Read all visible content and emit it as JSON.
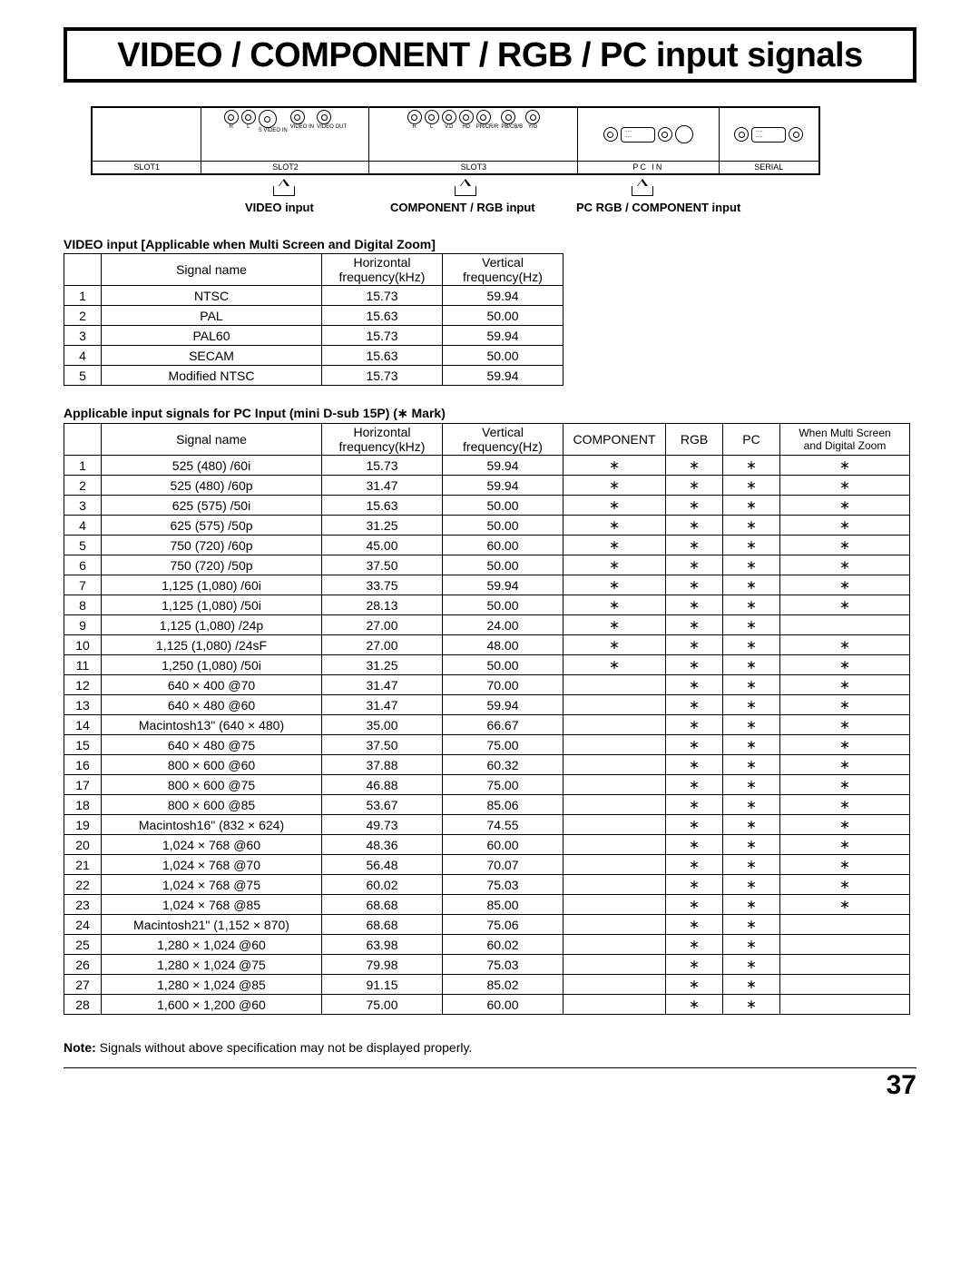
{
  "title": "VIDEO / COMPONENT / RGB / PC input signals",
  "slot_labels": {
    "slot1": "SLOT1",
    "slot2": "SLOT2",
    "slot3": "SLOT3",
    "pcin": "PC    IN",
    "serial": "SERIAL"
  },
  "port_labels": {
    "audio_r": "R",
    "audio_l": "L",
    "audio_in": "AUDIO",
    "in": "IN",
    "svideo": "S VIDEO IN",
    "av": "AV",
    "video_in": "VIDEO IN",
    "video_out": "VIDEO OUT",
    "vd": "V.D",
    "hd": "HD",
    "pr": "PR/CR/R",
    "pb": "PB/CB/B",
    "yg": "Y/G",
    "comp_rgb_in": "COMPONENT/RGB IN",
    "audio": "AUDIO"
  },
  "input_labels": {
    "video": "VIDEO input",
    "component": "COMPONENT / RGB input",
    "pc": "PC RGB / COMPONENT input"
  },
  "table1_caption": "VIDEO input [Applicable when Multi Screen and Digital Zoom]",
  "table1_headers": {
    "name": "Signal name",
    "hfreq": "Horizontal\nfrequency(kHz)",
    "vfreq": "Vertical\nfrequency(Hz)"
  },
  "table1_rows": [
    {
      "n": "1",
      "name": "NTSC",
      "h": "15.73",
      "v": "59.94"
    },
    {
      "n": "2",
      "name": "PAL",
      "h": "15.63",
      "v": "50.00"
    },
    {
      "n": "3",
      "name": "PAL60",
      "h": "15.73",
      "v": "59.94"
    },
    {
      "n": "4",
      "name": "SECAM",
      "h": "15.63",
      "v": "50.00"
    },
    {
      "n": "5",
      "name": "Modified NTSC",
      "h": "15.73",
      "v": "59.94"
    }
  ],
  "table2_caption": "Applicable input signals for PC Input (mini D-sub 15P) (∗ Mark)",
  "table2_headers": {
    "name": "Signal name",
    "hfreq": "Horizontal\nfrequency(kHz)",
    "vfreq": "Vertical\nfrequency(Hz)",
    "comp": "COMPONENT",
    "rgb": "RGB",
    "pc": "PC",
    "multi": "When Multi Screen\nand Digital Zoom"
  },
  "mark": "∗",
  "table2_rows": [
    {
      "n": "1",
      "name": "525 (480) /60i",
      "h": "15.73",
      "v": "59.94",
      "c": true,
      "r": true,
      "p": true,
      "m": true
    },
    {
      "n": "2",
      "name": "525 (480) /60p",
      "h": "31.47",
      "v": "59.94",
      "c": true,
      "r": true,
      "p": true,
      "m": true
    },
    {
      "n": "3",
      "name": "625 (575) /50i",
      "h": "15.63",
      "v": "50.00",
      "c": true,
      "r": true,
      "p": true,
      "m": true
    },
    {
      "n": "4",
      "name": "625 (575) /50p",
      "h": "31.25",
      "v": "50.00",
      "c": true,
      "r": true,
      "p": true,
      "m": true
    },
    {
      "n": "5",
      "name": "750 (720) /60p",
      "h": "45.00",
      "v": "60.00",
      "c": true,
      "r": true,
      "p": true,
      "m": true
    },
    {
      "n": "6",
      "name": "750 (720) /50p",
      "h": "37.50",
      "v": "50.00",
      "c": true,
      "r": true,
      "p": true,
      "m": true
    },
    {
      "n": "7",
      "name": "1,125 (1,080) /60i",
      "h": "33.75",
      "v": "59.94",
      "c": true,
      "r": true,
      "p": true,
      "m": true
    },
    {
      "n": "8",
      "name": "1,125 (1,080) /50i",
      "h": "28.13",
      "v": "50.00",
      "c": true,
      "r": true,
      "p": true,
      "m": true
    },
    {
      "n": "9",
      "name": "1,125 (1,080) /24p",
      "h": "27.00",
      "v": "24.00",
      "c": true,
      "r": true,
      "p": true,
      "m": false
    },
    {
      "n": "10",
      "name": "1,125 (1,080) /24sF",
      "h": "27.00",
      "v": "48.00",
      "c": true,
      "r": true,
      "p": true,
      "m": true
    },
    {
      "n": "11",
      "name": "1,250 (1,080) /50i",
      "h": "31.25",
      "v": "50.00",
      "c": true,
      "r": true,
      "p": true,
      "m": true
    },
    {
      "n": "12",
      "name": "640 × 400 @70",
      "h": "31.47",
      "v": "70.00",
      "c": false,
      "r": true,
      "p": true,
      "m": true
    },
    {
      "n": "13",
      "name": "640 × 480 @60",
      "h": "31.47",
      "v": "59.94",
      "c": false,
      "r": true,
      "p": true,
      "m": true
    },
    {
      "n": "14",
      "name": "Macintosh13\" (640 × 480)",
      "h": "35.00",
      "v": "66.67",
      "c": false,
      "r": true,
      "p": true,
      "m": true
    },
    {
      "n": "15",
      "name": "640 × 480 @75",
      "h": "37.50",
      "v": "75.00",
      "c": false,
      "r": true,
      "p": true,
      "m": true
    },
    {
      "n": "16",
      "name": "800 × 600 @60",
      "h": "37.88",
      "v": "60.32",
      "c": false,
      "r": true,
      "p": true,
      "m": true
    },
    {
      "n": "17",
      "name": "800 × 600 @75",
      "h": "46.88",
      "v": "75.00",
      "c": false,
      "r": true,
      "p": true,
      "m": true
    },
    {
      "n": "18",
      "name": "800 × 600 @85",
      "h": "53.67",
      "v": "85.06",
      "c": false,
      "r": true,
      "p": true,
      "m": true
    },
    {
      "n": "19",
      "name": "Macintosh16\" (832 × 624)",
      "h": "49.73",
      "v": "74.55",
      "c": false,
      "r": true,
      "p": true,
      "m": true
    },
    {
      "n": "20",
      "name": "1,024 × 768 @60",
      "h": "48.36",
      "v": "60.00",
      "c": false,
      "r": true,
      "p": true,
      "m": true
    },
    {
      "n": "21",
      "name": "1,024 × 768 @70",
      "h": "56.48",
      "v": "70.07",
      "c": false,
      "r": true,
      "p": true,
      "m": true
    },
    {
      "n": "22",
      "name": "1,024 × 768 @75",
      "h": "60.02",
      "v": "75.03",
      "c": false,
      "r": true,
      "p": true,
      "m": true
    },
    {
      "n": "23",
      "name": "1,024 × 768 @85",
      "h": "68.68",
      "v": "85.00",
      "c": false,
      "r": true,
      "p": true,
      "m": true
    },
    {
      "n": "24",
      "name": "Macintosh21\" (1,152 × 870)",
      "h": "68.68",
      "v": "75.06",
      "c": false,
      "r": true,
      "p": true,
      "m": false
    },
    {
      "n": "25",
      "name": "1,280 × 1,024 @60",
      "h": "63.98",
      "v": "60.02",
      "c": false,
      "r": true,
      "p": true,
      "m": false
    },
    {
      "n": "26",
      "name": "1,280 × 1,024 @75",
      "h": "79.98",
      "v": "75.03",
      "c": false,
      "r": true,
      "p": true,
      "m": false
    },
    {
      "n": "27",
      "name": "1,280 × 1,024 @85",
      "h": "91.15",
      "v": "85.02",
      "c": false,
      "r": true,
      "p": true,
      "m": false
    },
    {
      "n": "28",
      "name": "1,600 × 1,200 @60",
      "h": "75.00",
      "v": "60.00",
      "c": false,
      "r": true,
      "p": true,
      "m": false
    }
  ],
  "note_label": "Note:",
  "note_text": " Signals without above specification may not be displayed properly.",
  "page_number": "37"
}
